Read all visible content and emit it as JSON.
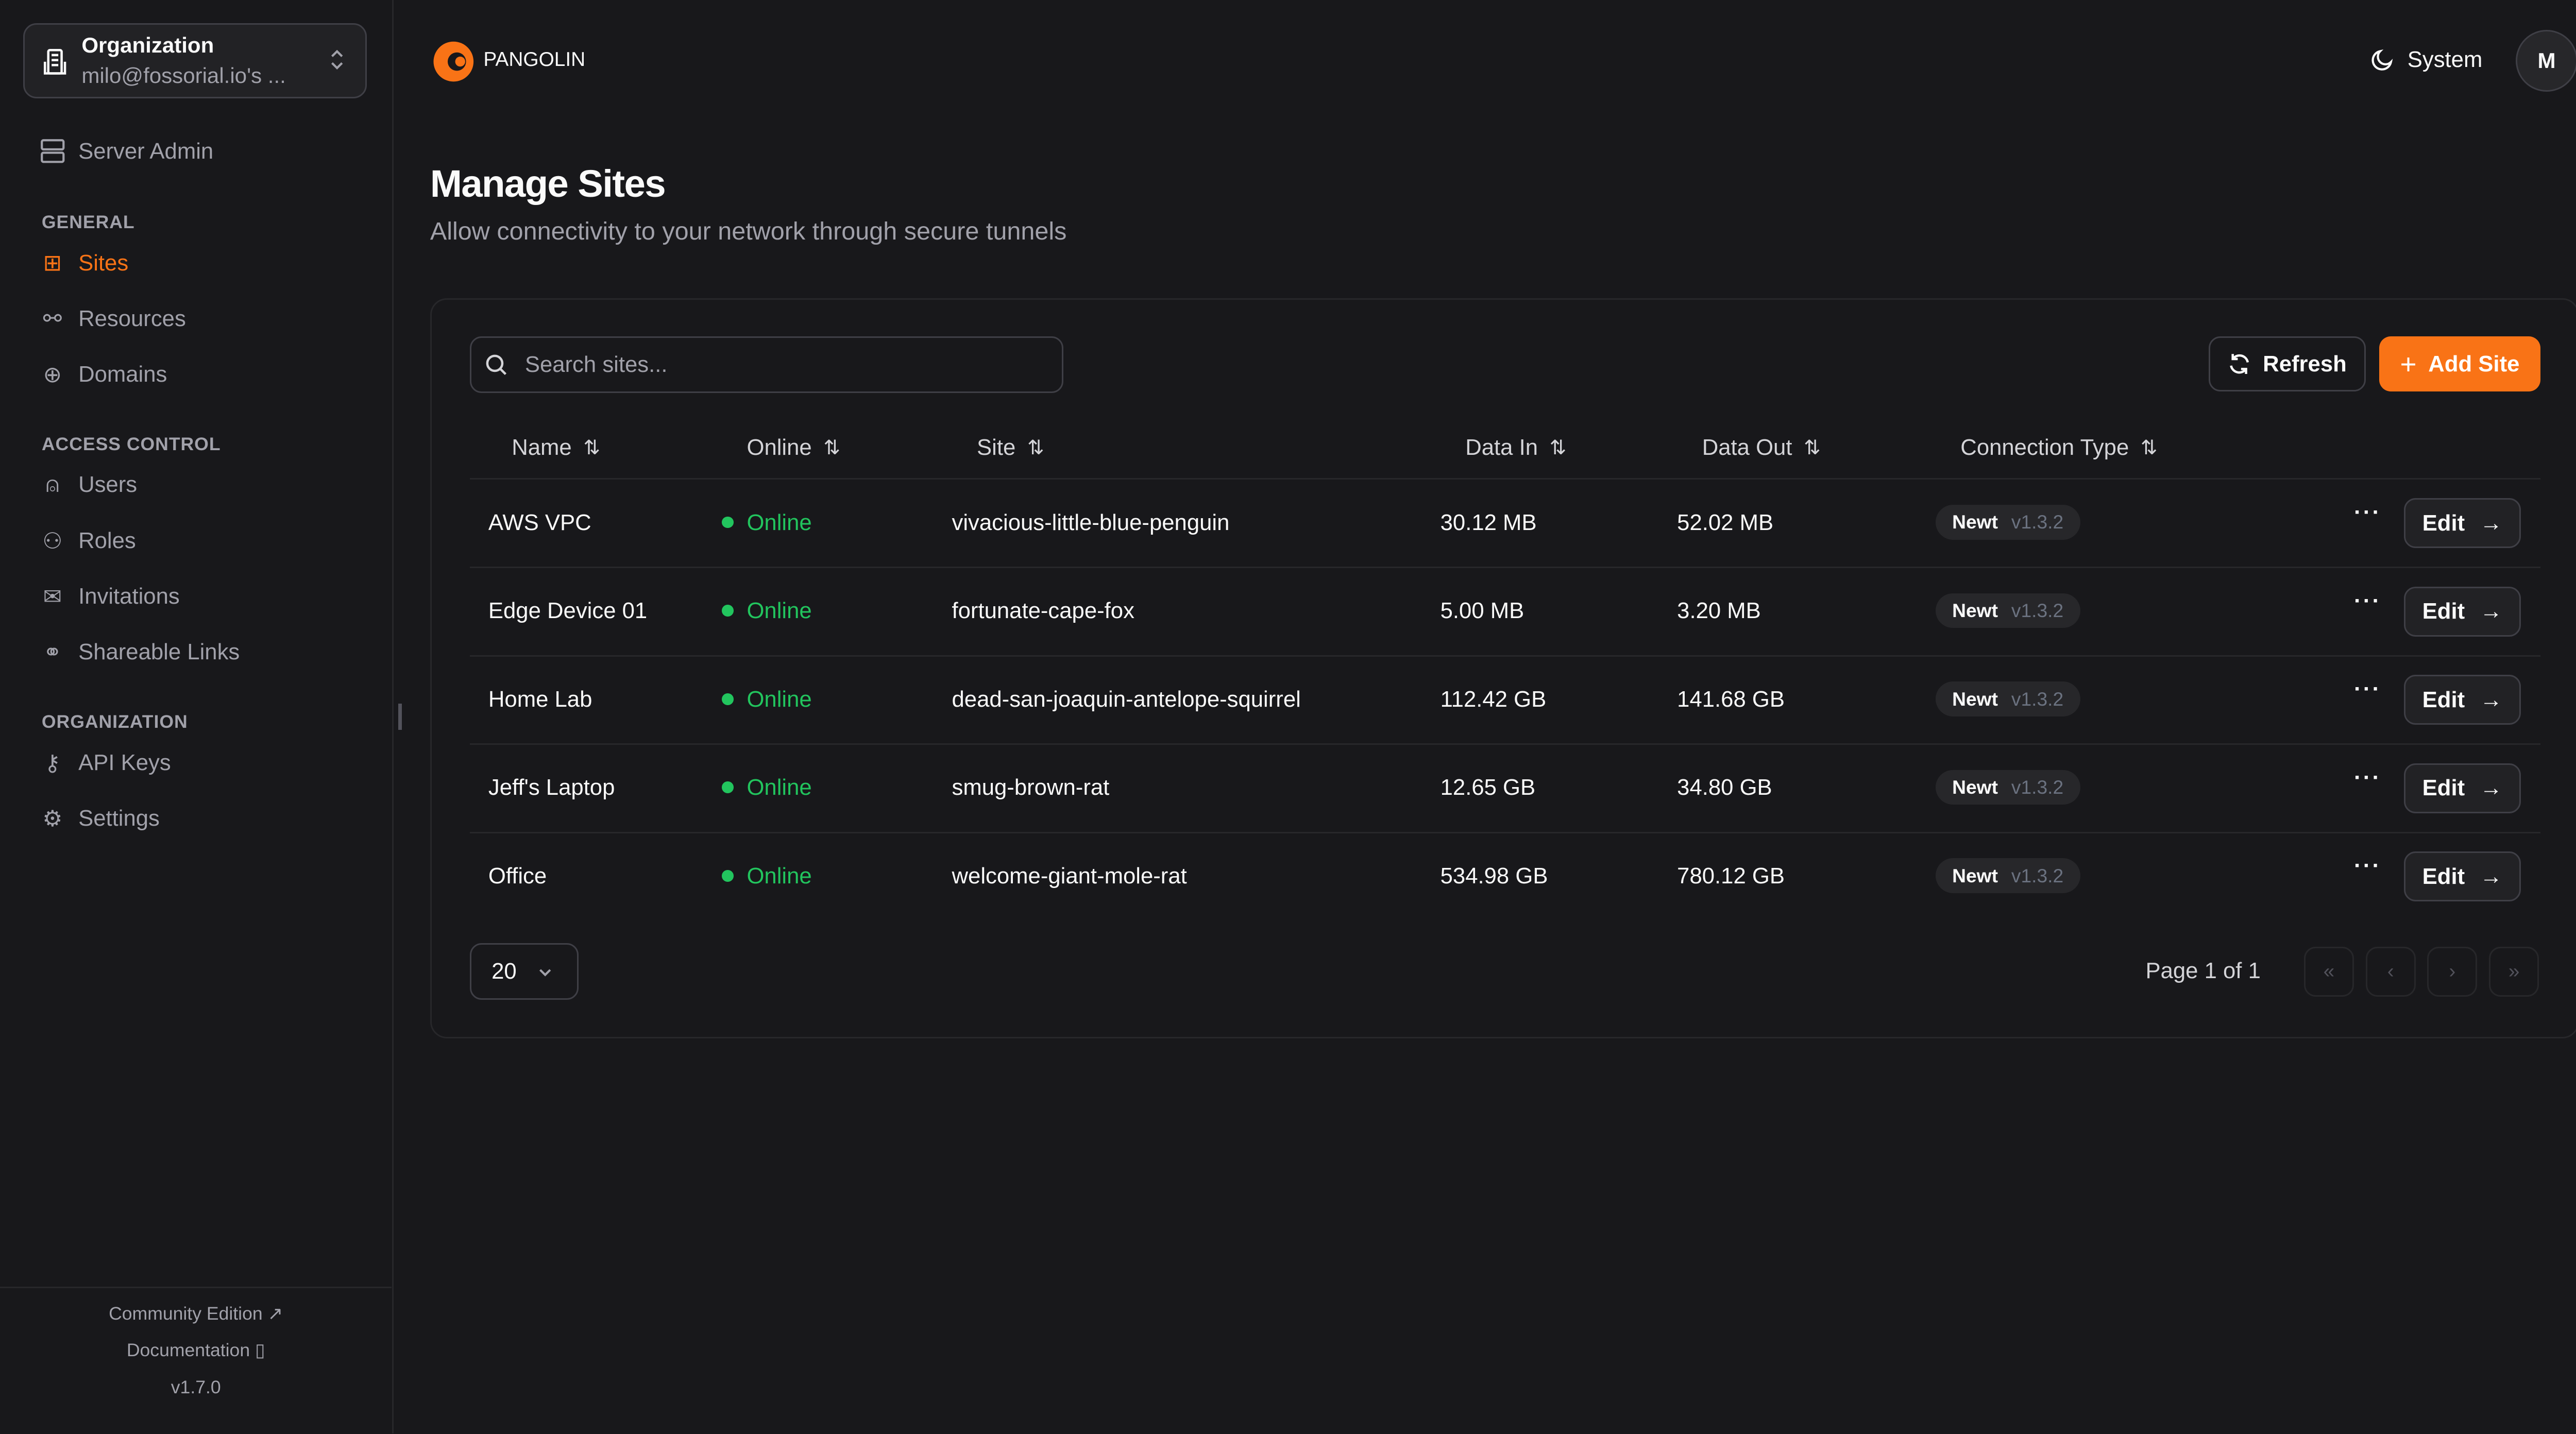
{
  "org": {
    "title": "Organization",
    "subtitle": "milo@fossorial.io's ..."
  },
  "sidebar": {
    "server_admin": "Server Admin",
    "sections": [
      {
        "label": "GENERAL",
        "items": [
          {
            "label": "Sites",
            "icon": "sites-icon",
            "active": true
          },
          {
            "label": "Resources",
            "icon": "resources-icon"
          },
          {
            "label": "Domains",
            "icon": "globe-icon"
          }
        ]
      },
      {
        "label": "ACCESS CONTROL",
        "items": [
          {
            "label": "Users",
            "icon": "user-icon"
          },
          {
            "label": "Roles",
            "icon": "users-icon"
          },
          {
            "label": "Invitations",
            "icon": "mail-icon"
          },
          {
            "label": "Shareable Links",
            "icon": "link-icon"
          }
        ]
      },
      {
        "label": "ORGANIZATION",
        "items": [
          {
            "label": "API Keys",
            "icon": "key-icon"
          },
          {
            "label": "Settings",
            "icon": "gear-icon"
          }
        ]
      }
    ],
    "footer": {
      "community": "Community Edition",
      "docs": "Documentation",
      "version": "v1.7.0"
    }
  },
  "header": {
    "brand": "PANGOLIN",
    "theme": "System",
    "avatar": "M"
  },
  "page": {
    "title": "Manage Sites",
    "subtitle": "Allow connectivity to your network through secure tunnels"
  },
  "toolbar": {
    "search_placeholder": "Search sites...",
    "refresh": "Refresh",
    "add": "Add Site"
  },
  "colors": {
    "accent": "#f97316",
    "online": "#22c55e",
    "background": "#18181b"
  },
  "table": {
    "columns": [
      "Name",
      "Online",
      "Site",
      "Data In",
      "Data Out",
      "Connection Type"
    ],
    "rows": [
      {
        "name": "AWS VPC",
        "online": "Online",
        "site": "vivacious-little-blue-penguin",
        "in": "30.12 MB",
        "out": "52.02 MB",
        "type": "Newt",
        "ver": "v1.3.2",
        "edit": "Edit"
      },
      {
        "name": "Edge Device 01",
        "online": "Online",
        "site": "fortunate-cape-fox",
        "in": "5.00 MB",
        "out": "3.20 MB",
        "type": "Newt",
        "ver": "v1.3.2",
        "edit": "Edit"
      },
      {
        "name": "Home Lab",
        "online": "Online",
        "site": "dead-san-joaquin-antelope-squirrel",
        "in": "112.42 GB",
        "out": "141.68 GB",
        "type": "Newt",
        "ver": "v1.3.2",
        "edit": "Edit"
      },
      {
        "name": "Jeff's Laptop",
        "online": "Online",
        "site": "smug-brown-rat",
        "in": "12.65 GB",
        "out": "34.80 GB",
        "type": "Newt",
        "ver": "v1.3.2",
        "edit": "Edit"
      },
      {
        "name": "Office",
        "online": "Online",
        "site": "welcome-giant-mole-rat",
        "in": "534.98 GB",
        "out": "780.12 GB",
        "type": "Newt",
        "ver": "v1.3.2",
        "edit": "Edit"
      }
    ]
  },
  "pagination": {
    "page_size": "20",
    "page_label": "Page 1 of 1"
  }
}
